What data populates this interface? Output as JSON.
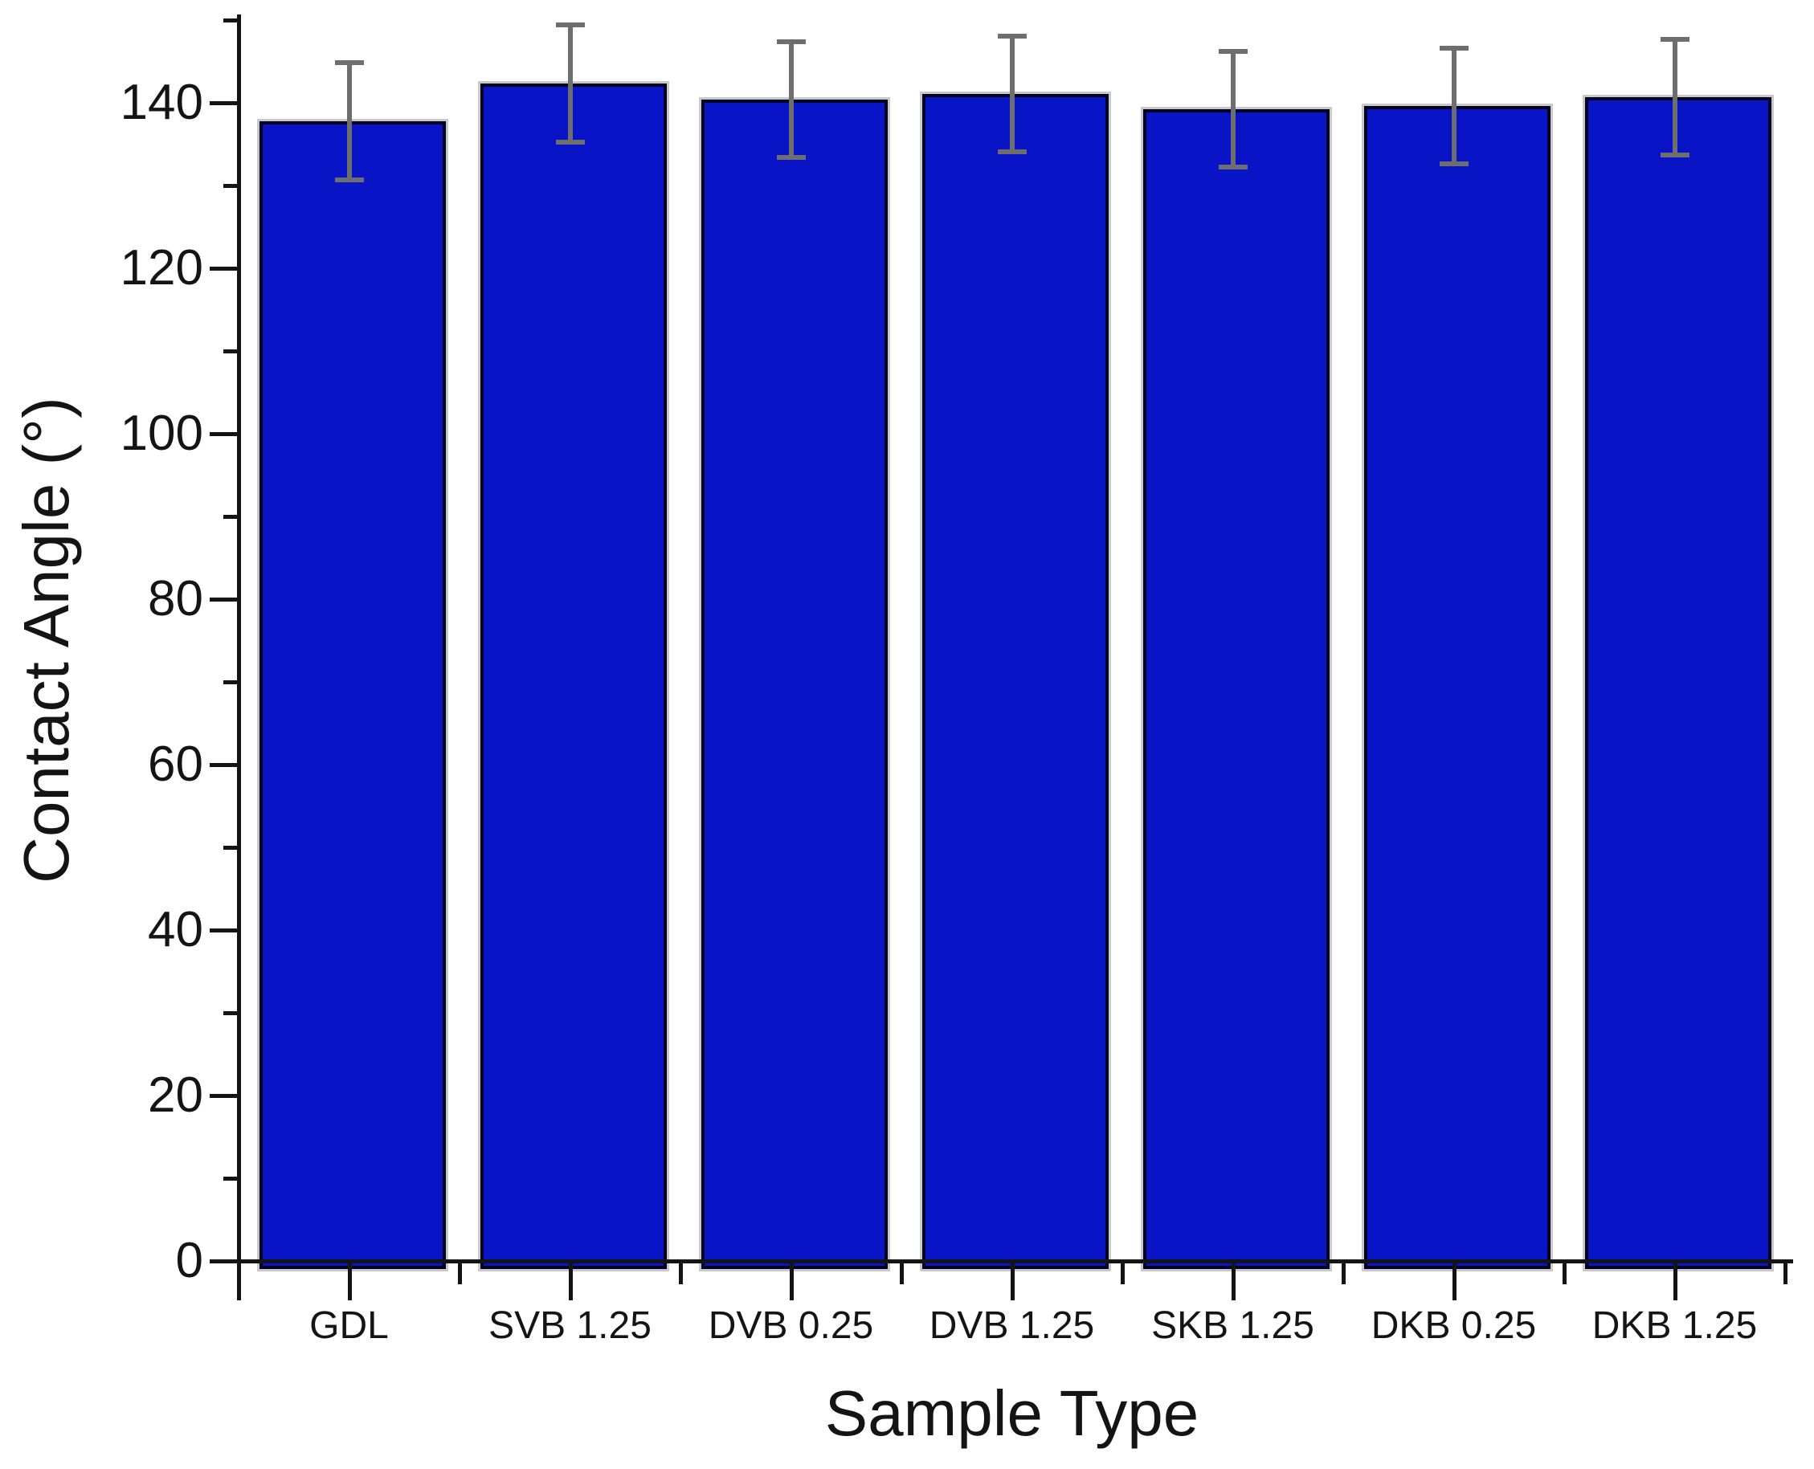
{
  "chart_data": {
    "type": "bar",
    "title": "",
    "xlabel": "Sample Type",
    "ylabel": "Contact Angle (°)",
    "categories": [
      "GDL",
      "SVB 1.25",
      "DVB 0.25",
      "DVB 1.25",
      "SKB 1.25",
      "DKB 0.25",
      "DKB 1.25"
    ],
    "values": [
      137.8,
      142.3,
      140.4,
      141.1,
      139.2,
      139.6,
      140.7
    ],
    "error_bars": [
      7.1,
      7.1,
      7.0,
      7.0,
      7.0,
      7.0,
      7.0
    ],
    "ylim": [
      0,
      150
    ],
    "ytick_major_step": 20,
    "ytick_minor_step": 10,
    "ytick_labels": [
      "0",
      "20",
      "40",
      "60",
      "80",
      "100",
      "120",
      "140"
    ],
    "grid": false,
    "legend_position": "none",
    "colors": {
      "bar_fill": "#0814c6",
      "bar_border": "#000022",
      "bar_shadow": "#c9c9c9",
      "error_bar": "#6e6e6e",
      "axis": "#141414",
      "text": "#141414",
      "background": "#ffffff"
    }
  }
}
